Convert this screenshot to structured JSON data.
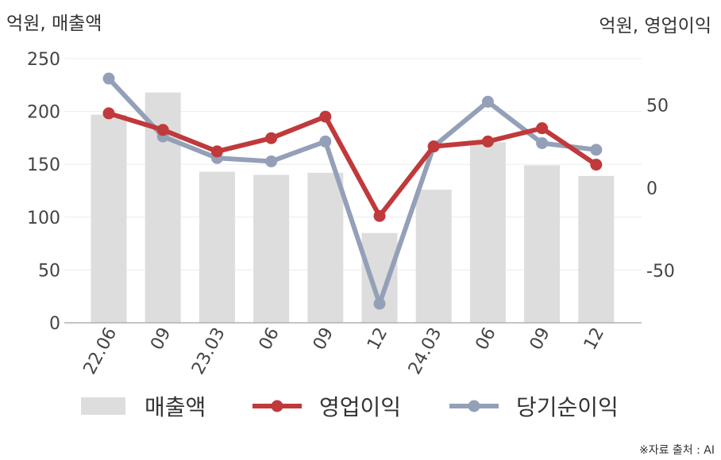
{
  "chart_data": {
    "type": "bar+line",
    "categories": [
      "22.06",
      "09",
      "23.03",
      "06",
      "09",
      "12",
      "24.03",
      "06",
      "09",
      "12"
    ],
    "left_axis": {
      "title": "억원, 매출액",
      "ylim": [
        0,
        250
      ],
      "ticks": [
        0,
        50,
        100,
        150,
        200,
        250
      ]
    },
    "right_axis": {
      "title": "억원, 영업이익",
      "ylim": [
        -81.5,
        78
      ],
      "ticks": [
        -50,
        0,
        50
      ]
    },
    "series": [
      {
        "name": "매출액",
        "type": "bar",
        "axis": "left",
        "color": "#dddddd",
        "values": [
          197,
          218,
          143,
          140,
          142,
          85,
          126,
          171,
          149,
          139
        ]
      },
      {
        "name": "영업이익",
        "type": "line",
        "axis": "right",
        "color": "#c0393b",
        "values": [
          45,
          35,
          22,
          30,
          43,
          -17,
          25,
          28,
          36,
          14
        ]
      },
      {
        "name": "당기순이익",
        "type": "line",
        "axis": "right",
        "color": "#94a0b8",
        "values": [
          66,
          31,
          18,
          16,
          28,
          -70,
          25,
          52,
          27,
          23
        ]
      }
    ],
    "grid": true,
    "legend_position": "bottom"
  },
  "source_note": "※자료 출처 : AI"
}
